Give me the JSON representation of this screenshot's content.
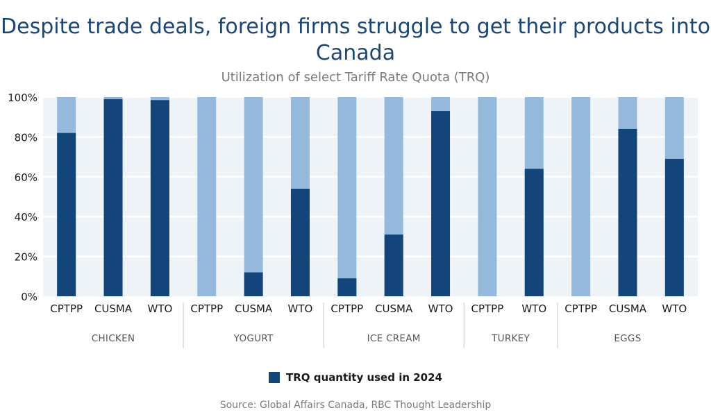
{
  "colors": {
    "used": "#13447a",
    "total": "#95b9dc",
    "plot_bg": "#eef3f8"
  },
  "chart_data": {
    "type": "bar",
    "title": "Despite trade deals, foreign firms struggle to get their products into Canada",
    "subtitle": "Utilization of select Tariff Rate Quota (TRQ)",
    "ylim": [
      0,
      100
    ],
    "yticks": [
      "0%",
      "20%",
      "40%",
      "60%",
      "80%",
      "100%"
    ],
    "groups": [
      {
        "name": "CHICKEN",
        "categories": [
          "CPTPP",
          "CUSMA",
          "WTO"
        ],
        "values": [
          82,
          99,
          98.5
        ]
      },
      {
        "name": "YOGURT",
        "categories": [
          "CPTPP",
          "CUSMA",
          "WTO"
        ],
        "values": [
          0,
          12,
          54
        ]
      },
      {
        "name": "ICE CREAM",
        "categories": [
          "CPTPP",
          "CUSMA",
          "WTO"
        ],
        "values": [
          9,
          31,
          93
        ]
      },
      {
        "name": "TURKEY",
        "categories": [
          "CPTPP",
          "WTO"
        ],
        "values": [
          0,
          64
        ]
      },
      {
        "name": "EGGS",
        "categories": [
          "CPTPP",
          "CUSMA",
          "WTO"
        ],
        "values": [
          0,
          84,
          69
        ]
      }
    ],
    "legend": [
      "TRQ quantity used in 2024"
    ],
    "legend_position": "bottom"
  },
  "source": "Source: Global Affairs Canada, RBC Thought Leadership"
}
